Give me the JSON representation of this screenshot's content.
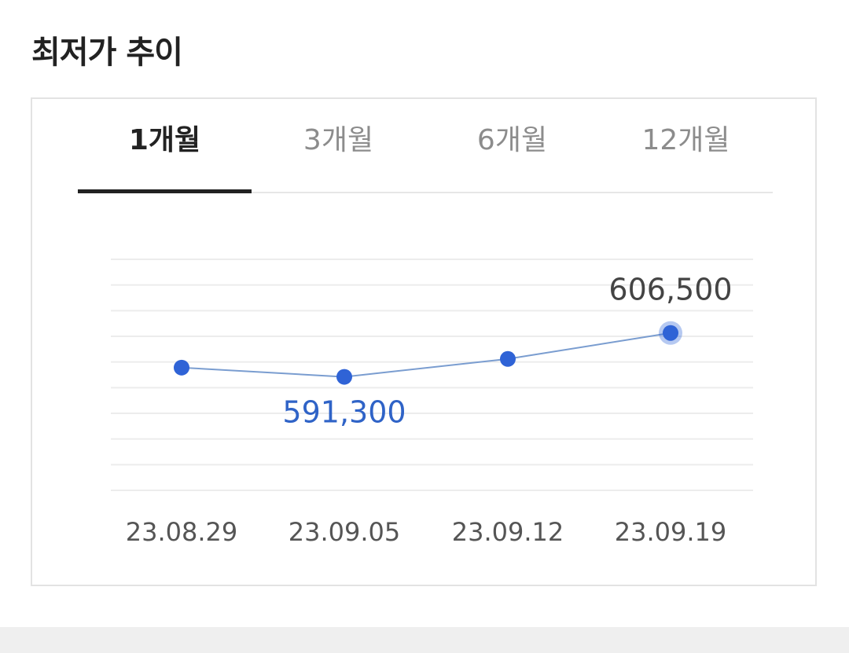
{
  "page": {
    "title": "최저가 추이"
  },
  "tabs": [
    {
      "label": "1개월",
      "active": true
    },
    {
      "label": "3개월",
      "active": false
    },
    {
      "label": "6개월",
      "active": false
    },
    {
      "label": "12개월",
      "active": false
    }
  ],
  "colors": {
    "line": "#7a9dd0",
    "point": "#2f63d6",
    "min_label": "#2f63c7",
    "max_label": "#444444",
    "grid": "#ececec",
    "tick": "#555555"
  },
  "chart_data": {
    "type": "line",
    "title": "",
    "xlabel": "",
    "ylabel": "",
    "categories": [
      "23.08.29",
      "23.09.05",
      "23.09.12",
      "23.09.19"
    ],
    "values": [
      594500,
      591300,
      597500,
      606500
    ],
    "ylim": [
      552000,
      632000
    ],
    "grid": true,
    "annotations": [
      {
        "label": "591,300",
        "index": 1,
        "kind": "min"
      },
      {
        "label": "606,500",
        "index": 3,
        "kind": "max"
      }
    ]
  }
}
